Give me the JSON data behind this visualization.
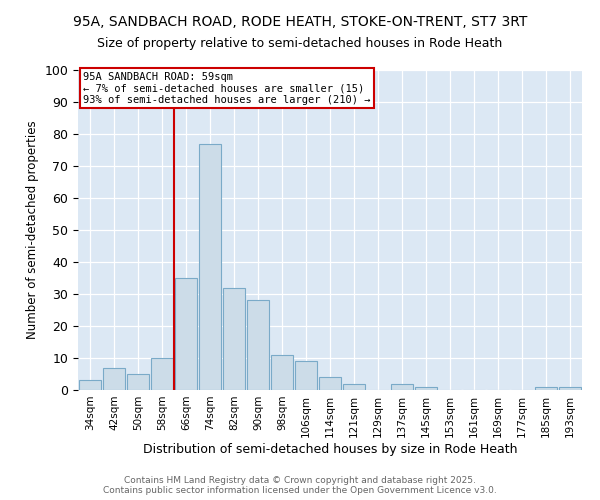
{
  "title1": "95A, SANDBACH ROAD, RODE HEATH, STOKE-ON-TRENT, ST7 3RT",
  "title2": "Size of property relative to semi-detached houses in Rode Heath",
  "xlabel": "Distribution of semi-detached houses by size in Rode Heath",
  "ylabel": "Number of semi-detached properties",
  "categories": [
    "34sqm",
    "42sqm",
    "50sqm",
    "58sqm",
    "66sqm",
    "74sqm",
    "82sqm",
    "90sqm",
    "98sqm",
    "106sqm",
    "114sqm",
    "121sqm",
    "129sqm",
    "137sqm",
    "145sqm",
    "153sqm",
    "161sqm",
    "169sqm",
    "177sqm",
    "185sqm",
    "193sqm"
  ],
  "values": [
    3,
    7,
    5,
    10,
    35,
    77,
    32,
    28,
    11,
    9,
    4,
    2,
    0,
    2,
    1,
    0,
    0,
    0,
    0,
    1,
    1
  ],
  "bar_color": "#ccdce8",
  "bar_edge_color": "#7aaac8",
  "vline_x": 3.5,
  "vline_color": "#cc0000",
  "annotation_title": "95A SANDBACH ROAD: 59sqm",
  "annotation_line1": "← 7% of semi-detached houses are smaller (15)",
  "annotation_line2": "93% of semi-detached houses are larger (210) →",
  "annotation_box_facecolor": "#ffffff",
  "annotation_box_edgecolor": "#cc0000",
  "ylim": [
    0,
    100
  ],
  "yticks": [
    0,
    10,
    20,
    30,
    40,
    50,
    60,
    70,
    80,
    90,
    100
  ],
  "bg_color": "#dce8f4",
  "footer1": "Contains HM Land Registry data © Crown copyright and database right 2025.",
  "footer2": "Contains public sector information licensed under the Open Government Licence v3.0.",
  "title_fontsize": 10,
  "subtitle_fontsize": 9,
  "footer_fontsize": 6.5
}
